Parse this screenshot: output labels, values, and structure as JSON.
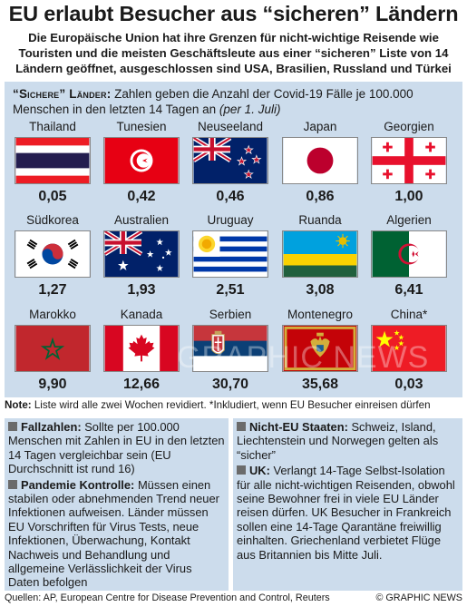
{
  "title": "EU erlaubt Besucher aus “sicheren” Ländern",
  "subtitle": "Die Europäische Union hat ihre Grenzen für nicht-wichtige Reisende wie Touristen und die meisten Geschäftsleute aus einer “sicheren” Liste von 14 Ländern geöffnet, ausgeschlossen sind USA, Brasilien, Russland und Türkei",
  "intro": {
    "header": "“Sichere” Länder:",
    "text": " Zahlen geben die Anzahl der Covid-19 Fälle je 100.000 Menschen in den letzten 14 Tagen an ",
    "date": "(per 1. Juli)"
  },
  "countries": [
    {
      "name": "Thailand",
      "value": "0,05"
    },
    {
      "name": "Tunesien",
      "value": "0,42"
    },
    {
      "name": "Neuseeland",
      "value": "0,46"
    },
    {
      "name": "Japan",
      "value": "0,86"
    },
    {
      "name": "Georgien",
      "value": "1,00"
    },
    {
      "name": "Südkorea",
      "value": "1,27"
    },
    {
      "name": "Australien",
      "value": "1,93"
    },
    {
      "name": "Uruguay",
      "value": "2,51"
    },
    {
      "name": "Ruanda",
      "value": "3,08"
    },
    {
      "name": "Algerien",
      "value": "6,41"
    },
    {
      "name": "Marokko",
      "value": "9,90"
    },
    {
      "name": "Kanada",
      "value": "12,66"
    },
    {
      "name": "Serbien",
      "value": "30,70"
    },
    {
      "name": "Montenegro",
      "value": "35,68"
    },
    {
      "name": "China*",
      "value": "0,03"
    }
  ],
  "note": {
    "label": "Note:",
    "text": " Liste wird alle zwei Wochen revidiert. *Inkludiert, wenn EU Besucher einreisen dürfen"
  },
  "left_box": {
    "p1_head": "Fallzahlen:",
    "p1_text": " Sollte per 100.000 Menschen mit Zahlen in EU in den letzten 14 Tagen vergleichbar sein (EU Durchschnitt ist rund 16)",
    "p2_head": "Pandemie Kontrolle:",
    "p2_text": " Müssen einen stabilen oder abnehmenden Trend neuer Infektionen aufweisen. Länder müssen EU Vorschriften für Virus Tests, neue Infektionen, Überwachung, Kontakt Nachweis und Behandlung und allgemeine Verlässlichkeit der Virus Daten befolgen"
  },
  "right_box": {
    "p1_head": "Nicht-EU Staaten:",
    "p1_text": " Schweiz, Island, Liechtenstein und Norwegen gelten als “sicher”",
    "p2_head": "UK:",
    "p2_text": " Verlangt 14-Tage Selbst-Isolation für alle nicht-wichtigen Reisenden, obwohl seine Bewohner frei in viele EU Länder reisen dürfen. UK Besucher in Frankreich sollen eine 14-Tage Qarantäne freiwillig einhalten. Griechenland verbietet Flüge aus Britannien bis Mitte Juli."
  },
  "footer": {
    "sources": "Quellen: AP, European Centre for Disease Prevention and Control, Reuters",
    "copyright": "© GRAPHIC NEWS"
  },
  "watermark": "GRAPHIC NEWS"
}
